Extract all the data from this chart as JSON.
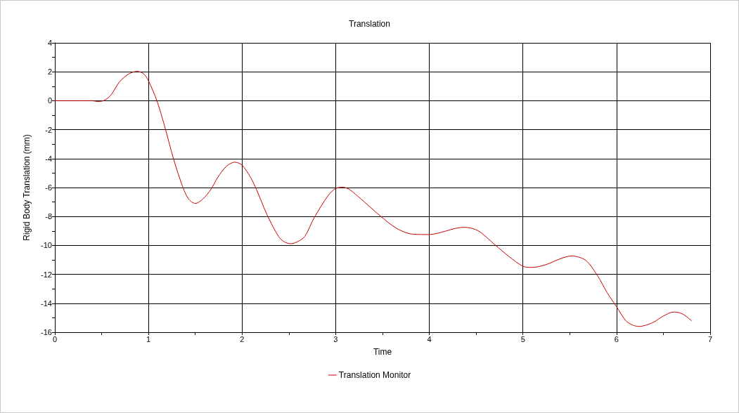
{
  "chart_data": {
    "type": "line",
    "title": "Translation",
    "xlabel": "Time",
    "ylabel": "Rigid Body Translation (mm)",
    "x": [
      0,
      0.4,
      0.45,
      0.52,
      0.6,
      0.69,
      0.79,
      0.88,
      0.95,
      1.0,
      1.09,
      1.17,
      1.27,
      1.37,
      1.43,
      1.5,
      1.58,
      1.67,
      1.74,
      1.83,
      1.92,
      2.0,
      2.12,
      2.27,
      2.39,
      2.45,
      2.52,
      2.59,
      2.67,
      2.77,
      2.92,
      3.0,
      3.08,
      3.15,
      3.27,
      3.47,
      3.65,
      3.82,
      4.0,
      4.17,
      4.28,
      4.38,
      4.52,
      4.7,
      4.85,
      5.0,
      5.1,
      5.25,
      5.4,
      5.52,
      5.67,
      5.8,
      5.9,
      6.0,
      6.1,
      6.17,
      6.24,
      6.32,
      6.4,
      6.5,
      6.61,
      6.7,
      6.8
    ],
    "series": [
      {
        "name": "Translation Monitor",
        "color": "#cc0000",
        "values": [
          0,
          0,
          -0.05,
          0,
          0.4,
          1.3,
          1.85,
          2.03,
          1.85,
          1.38,
          0,
          -1.7,
          -4.07,
          -6.02,
          -6.8,
          -7.1,
          -6.8,
          -6.1,
          -5.3,
          -4.55,
          -4.25,
          -4.45,
          -5.66,
          -7.93,
          -9.38,
          -9.75,
          -9.88,
          -9.75,
          -9.38,
          -8.09,
          -6.55,
          -6.06,
          -5.98,
          -6.15,
          -6.79,
          -7.93,
          -8.82,
          -9.22,
          -9.25,
          -9.02,
          -8.82,
          -8.75,
          -8.98,
          -9.95,
          -10.76,
          -11.44,
          -11.52,
          -11.32,
          -10.92,
          -10.73,
          -11.03,
          -12.13,
          -13.27,
          -14.24,
          -15.21,
          -15.5,
          -15.6,
          -15.5,
          -15.29,
          -14.88,
          -14.6,
          -14.72,
          -15.2
        ]
      }
    ],
    "xlim": [
      0,
      7
    ],
    "xticks": [
      0,
      {
        "value": 0.5,
        "label": null
      },
      1,
      {
        "value": 1.5,
        "label": null
      },
      2,
      {
        "value": 2.5,
        "label": null
      },
      3,
      {
        "value": 3.5,
        "label": null
      },
      4,
      {
        "value": 4.5,
        "label": null
      },
      5,
      {
        "value": 5.5,
        "label": null
      },
      6,
      {
        "value": 6.5,
        "label": null
      },
      7
    ],
    "ylim": [
      -16,
      4
    ],
    "yticks": [
      -16,
      {
        "value": -15,
        "label": null
      },
      -14,
      {
        "value": -13,
        "label": null
      },
      -12,
      {
        "value": -11,
        "label": null
      },
      -10,
      {
        "value": -9,
        "label": null
      },
      -8,
      {
        "value": -7,
        "label": null
      },
      -6,
      {
        "value": -5,
        "label": null
      },
      -4,
      {
        "value": -3,
        "label": null
      },
      -2,
      {
        "value": -1,
        "label": null
      },
      0,
      {
        "value": 1,
        "label": null
      },
      2,
      {
        "value": 3,
        "label": null
      },
      4
    ],
    "grid": true,
    "legend": "bottom",
    "marker": "none",
    "line_style": "solid"
  }
}
